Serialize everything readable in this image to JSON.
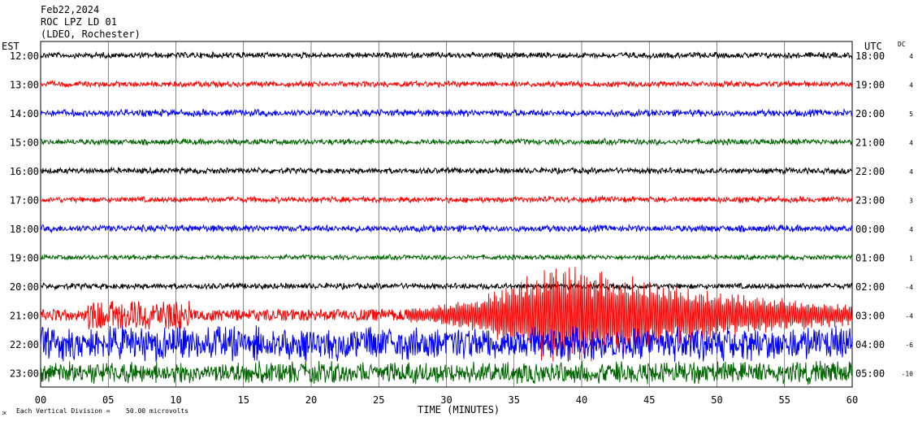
{
  "header": {
    "date": "Feb22,2024",
    "station": "ROC LPZ LD 01",
    "source": "(LDEO, Rochester)",
    "left_zone": "EST",
    "right_zone": "UTC",
    "dc_label": "DC"
  },
  "footer": {
    "scale_prefix": "JK",
    "scale_text": "Each Vertical Division =",
    "scale_value": "50.00 microvolts"
  },
  "chart_data": {
    "type": "line",
    "title": "",
    "xlabel": "TIME (MINUTES)",
    "ylabel": "",
    "xlim": [
      0,
      60
    ],
    "x_ticks": [
      "00",
      "05",
      "10",
      "15",
      "20",
      "25",
      "30",
      "35",
      "40",
      "45",
      "50",
      "55",
      "60"
    ],
    "grid": true,
    "rows": [
      {
        "est": "12:00",
        "utc": "18:00",
        "dc": "4",
        "color": "#000000",
        "amplitude": 3
      },
      {
        "est": "13:00",
        "utc": "19:00",
        "dc": "4",
        "color": "#ff0000",
        "amplitude": 3
      },
      {
        "est": "14:00",
        "utc": "20:00",
        "dc": "5",
        "color": "#0000ff",
        "amplitude": 3.5
      },
      {
        "est": "15:00",
        "utc": "21:00",
        "dc": "4",
        "color": "#006400",
        "amplitude": 3
      },
      {
        "est": "16:00",
        "utc": "22:00",
        "dc": "4",
        "color": "#000000",
        "amplitude": 3
      },
      {
        "est": "17:00",
        "utc": "23:00",
        "dc": "3",
        "color": "#ff0000",
        "amplitude": 3
      },
      {
        "est": "18:00",
        "utc": "00:00",
        "dc": "4",
        "color": "#0000ff",
        "amplitude": 3.5
      },
      {
        "est": "19:00",
        "utc": "01:00",
        "dc": "1",
        "color": "#006400",
        "amplitude": 2.5
      },
      {
        "est": "20:00",
        "utc": "02:00",
        "dc": "-4",
        "color": "#000000",
        "amplitude": 3
      },
      {
        "est": "21:00",
        "utc": "03:00",
        "dc": "-4",
        "color": "#ff0000",
        "amplitude": 10
      },
      {
        "est": "22:00",
        "utc": "04:00",
        "dc": "-6",
        "color": "#0000ff",
        "amplitude": 17
      },
      {
        "est": "23:00",
        "utc": "05:00",
        "dc": "-10",
        "color": "#006400",
        "amplitude": 11
      }
    ],
    "events": [
      {
        "row": 9,
        "start_min": 27,
        "peak_min": 38,
        "end_min": 60,
        "peak_amplitude": 110
      }
    ]
  }
}
